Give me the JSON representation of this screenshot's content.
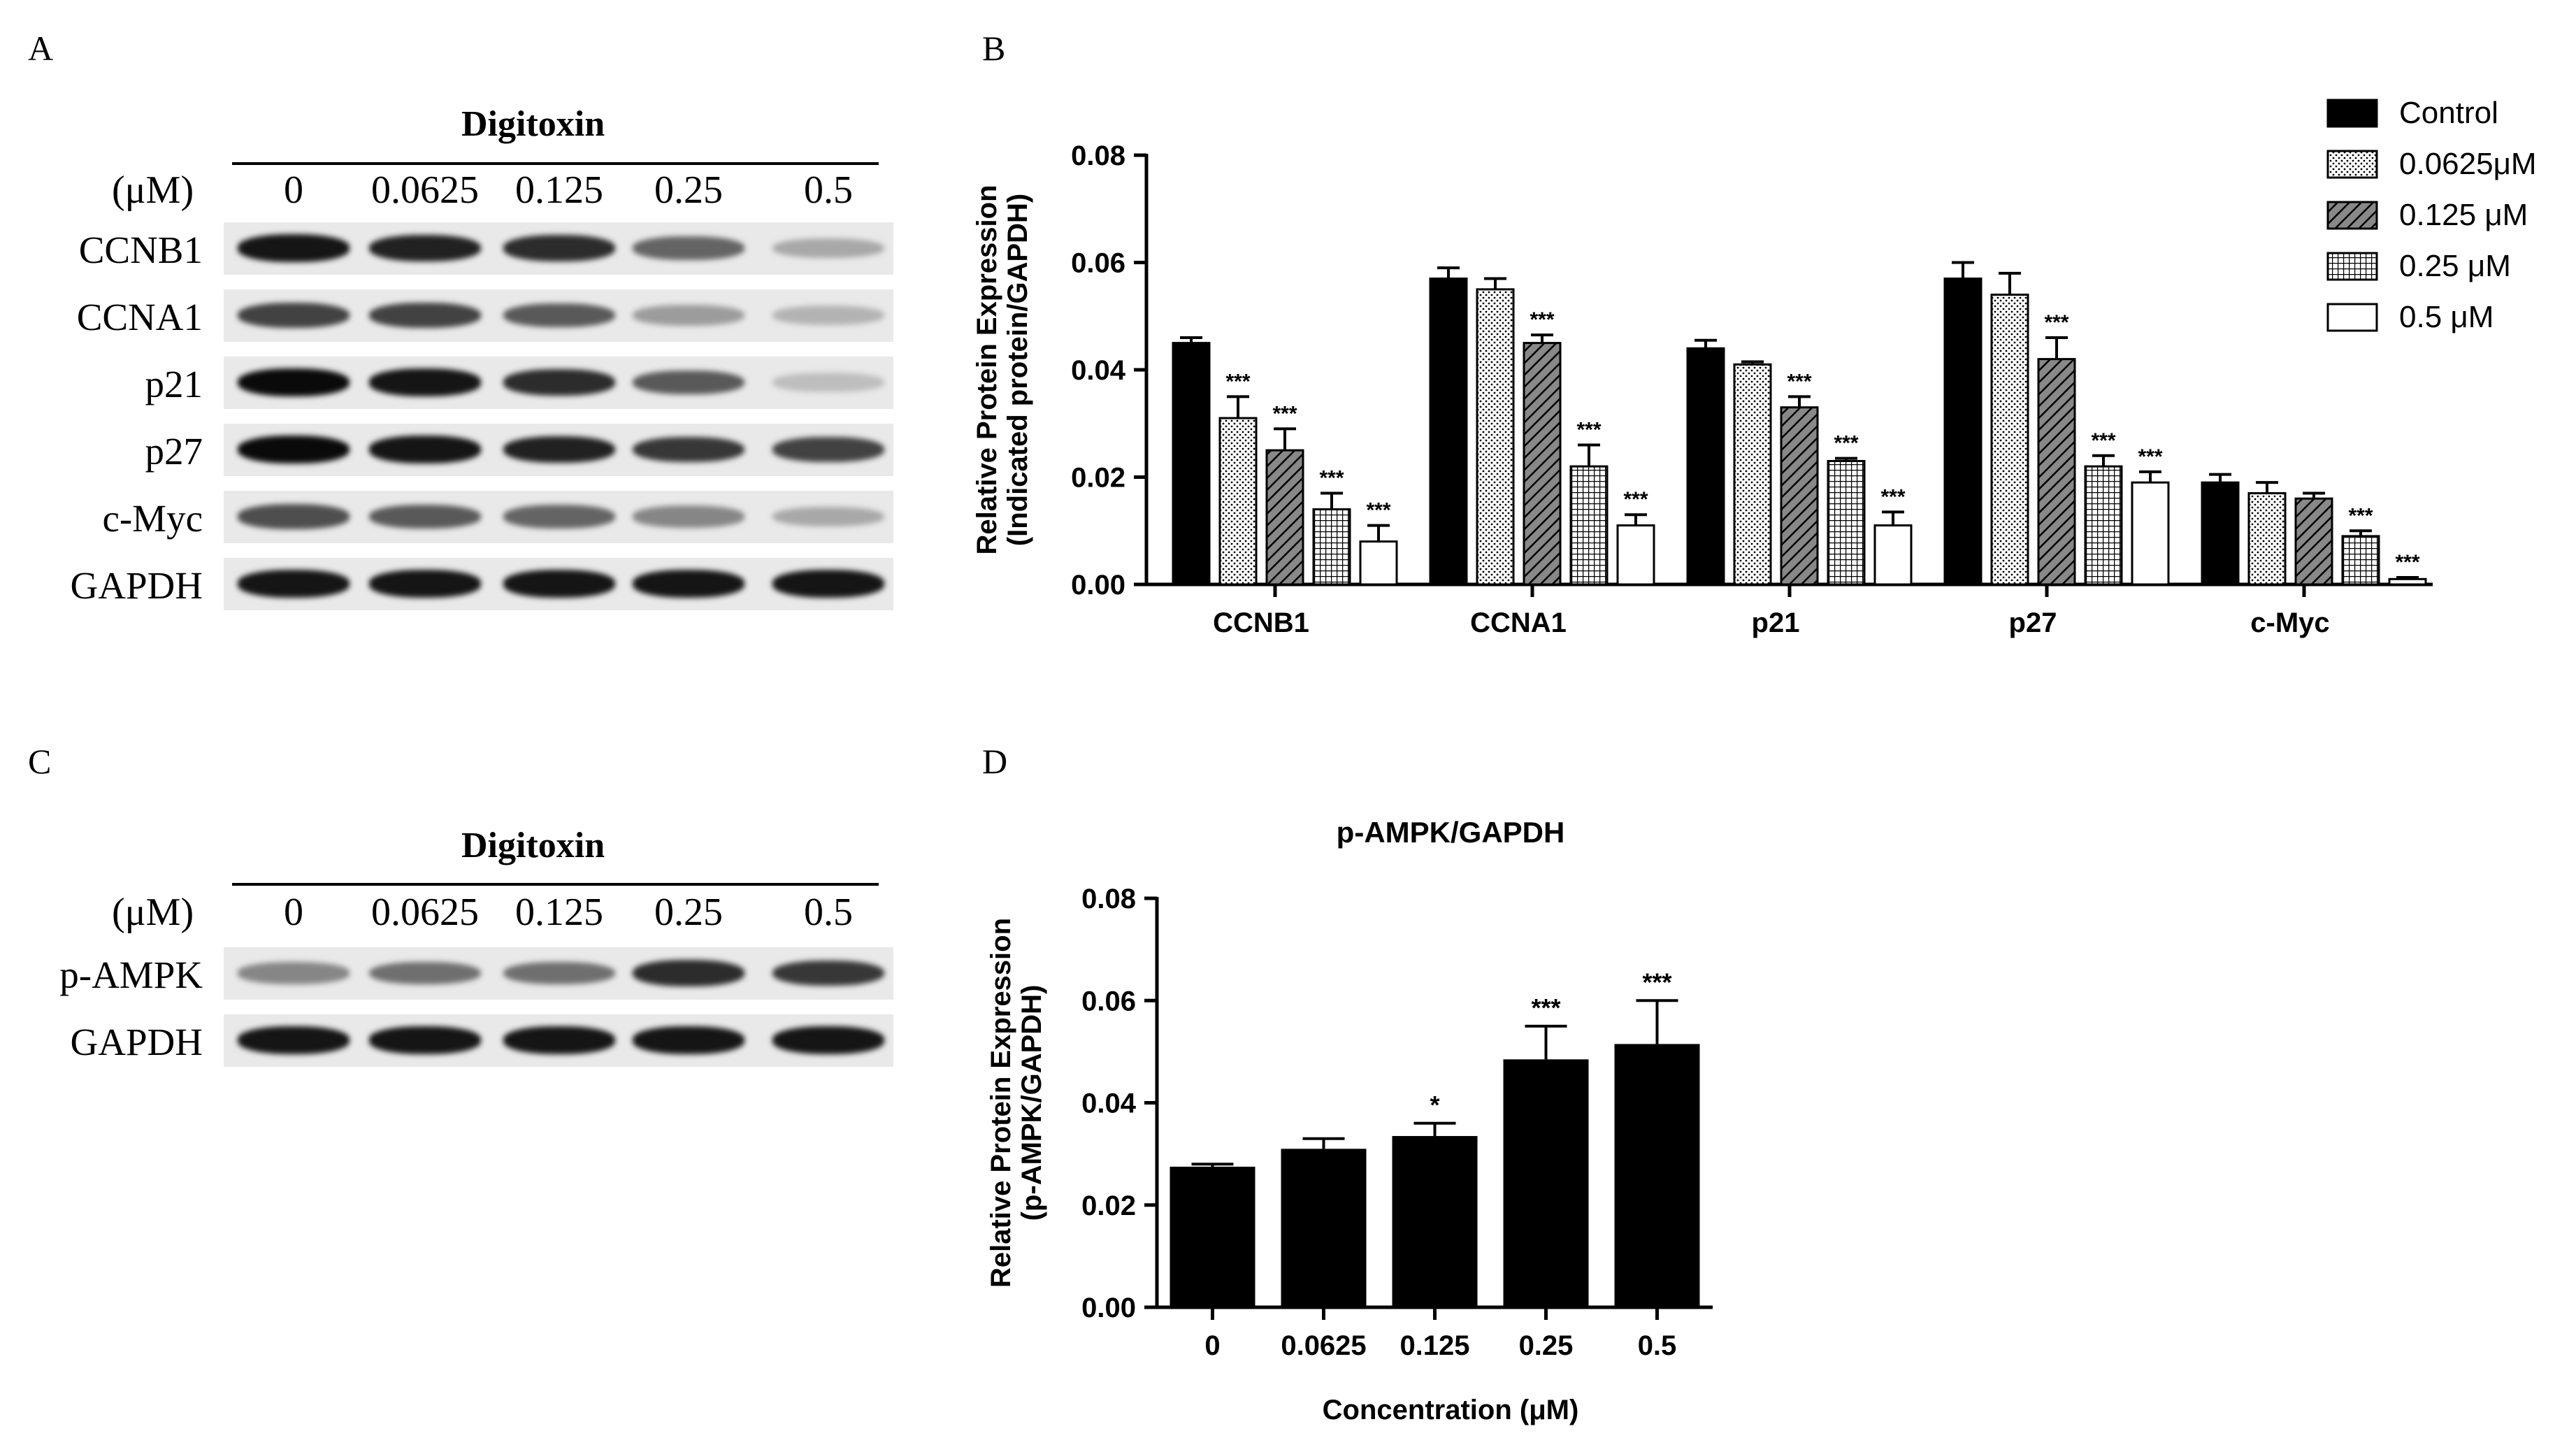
{
  "panels": {
    "A": "A",
    "B": "B",
    "C": "C",
    "D": "D"
  },
  "blot_A": {
    "title": "Digitoxin",
    "unit": "(μM)",
    "concentrations": [
      "0",
      "0.0625",
      "0.125",
      "0.25",
      "0.5"
    ],
    "rows": [
      {
        "label": "CCNB1",
        "levels": [
          0.95,
          0.9,
          0.85,
          0.6,
          0.3
        ]
      },
      {
        "label": "CCNA1",
        "levels": [
          0.75,
          0.75,
          0.65,
          0.35,
          0.25
        ]
      },
      {
        "label": "p21",
        "levels": [
          1.0,
          0.95,
          0.85,
          0.65,
          0.2
        ]
      },
      {
        "label": "p27",
        "levels": [
          1.0,
          0.95,
          0.9,
          0.8,
          0.75
        ]
      },
      {
        "label": "c-Myc",
        "levels": [
          0.7,
          0.65,
          0.6,
          0.45,
          0.3
        ]
      },
      {
        "label": "GAPDH",
        "levels": [
          0.95,
          0.95,
          0.95,
          0.95,
          0.95
        ]
      }
    ]
  },
  "blot_C": {
    "title": "Digitoxin",
    "unit": "(μM)",
    "concentrations": [
      "0",
      "0.0625",
      "0.125",
      "0.25",
      "0.5"
    ],
    "rows": [
      {
        "label": "p-AMPK",
        "levels": [
          0.45,
          0.55,
          0.55,
          0.85,
          0.8
        ]
      },
      {
        "label": "GAPDH",
        "levels": [
          0.95,
          0.95,
          0.95,
          0.95,
          0.95
        ]
      }
    ]
  },
  "chart_data": [
    {
      "type": "bar",
      "panel": "B",
      "title": "",
      "ylabel": "Relative Protein Expression (Indicated protein/GAPDH)",
      "ylabel_lines": [
        "Relative Protein Expression",
        "(Indicated protein/GAPDH)"
      ],
      "ylim": [
        0,
        0.08
      ],
      "yticks": [
        "0.00",
        "0.02",
        "0.04",
        "0.06",
        "0.08"
      ],
      "ytick_values": [
        0,
        0.02,
        0.04,
        0.06,
        0.08
      ],
      "categories": [
        "CCNB1",
        "CCNA1",
        "p21",
        "p27",
        "c-Myc"
      ],
      "legend_position": "top-right",
      "series": [
        {
          "name": "Control",
          "pattern": "solid",
          "values": [
            0.045,
            0.057,
            0.044,
            0.057,
            0.019
          ],
          "errors": [
            0.001,
            0.002,
            0.0015,
            0.003,
            0.0015
          ],
          "sig": [
            "",
            "",
            "",
            "",
            ""
          ]
        },
        {
          "name": "0.0625μM",
          "pattern": "dots",
          "values": [
            0.031,
            0.055,
            0.041,
            0.054,
            0.017
          ],
          "errors": [
            0.004,
            0.002,
            0.0005,
            0.004,
            0.002
          ],
          "sig": [
            "***",
            "",
            "",
            "",
            ""
          ]
        },
        {
          "name": "0.125 μM",
          "pattern": "hatch",
          "values": [
            0.025,
            0.045,
            0.033,
            0.042,
            0.016
          ],
          "errors": [
            0.004,
            0.0015,
            0.002,
            0.004,
            0.001
          ],
          "sig": [
            "***",
            "***",
            "***",
            "***",
            ""
          ]
        },
        {
          "name": "0.25 μM",
          "pattern": "grid",
          "values": [
            0.014,
            0.022,
            0.023,
            0.022,
            0.009
          ],
          "errors": [
            0.003,
            0.004,
            0.0005,
            0.002,
            0.001
          ],
          "sig": [
            "***",
            "***",
            "***",
            "***",
            "***"
          ]
        },
        {
          "name": "0.5 μM",
          "pattern": "white",
          "values": [
            0.008,
            0.011,
            0.011,
            0.019,
            0.001
          ],
          "errors": [
            0.003,
            0.002,
            0.0025,
            0.002,
            0.0003
          ],
          "sig": [
            "***",
            "***",
            "***",
            "***",
            "***"
          ]
        }
      ]
    },
    {
      "type": "bar",
      "panel": "D",
      "title": "p-AMPK/GAPDH",
      "xlabel": "Concentration  (μM)",
      "ylabel": "Relative Protein Expression (p-AMPK/GAPDH)",
      "ylabel_lines": [
        "Relative Protein Expression",
        "(p-AMPK/GAPDH)"
      ],
      "ylim": [
        0,
        0.08
      ],
      "yticks": [
        "0.00",
        "0.02",
        "0.04",
        "0.06",
        "0.08"
      ],
      "ytick_values": [
        0,
        0.02,
        0.04,
        0.06,
        0.08
      ],
      "categories": [
        "0",
        "0.0625",
        "0.125",
        "0.25",
        "0.5"
      ],
      "values": [
        0.0275,
        0.031,
        0.0335,
        0.0485,
        0.0515
      ],
      "errors": [
        0.0005,
        0.002,
        0.0025,
        0.0065,
        0.0085
      ],
      "sig": [
        "",
        "",
        "*",
        "***",
        "***"
      ],
      "colors": {
        "bar": "#000000"
      }
    }
  ]
}
